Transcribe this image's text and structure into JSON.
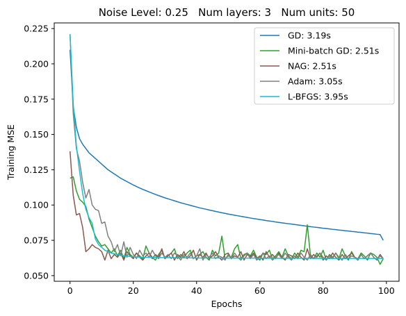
{
  "chart_data": {
    "type": "line",
    "title": "Noise Level: 0.25   Num layers: 3   Num units: 50",
    "xlabel": "Epochs",
    "ylabel": "Training MSE",
    "xlim": [
      -5,
      104
    ],
    "ylim": [
      0.046,
      0.229
    ],
    "xticks": [
      0,
      20,
      40,
      60,
      80,
      100
    ],
    "yticks": [
      0.05,
      0.075,
      0.1,
      0.125,
      0.15,
      0.175,
      0.2,
      0.225
    ],
    "ytick_labels": [
      "0.050",
      "0.075",
      "0.100",
      "0.125",
      "0.150",
      "0.175",
      "0.200",
      "0.225"
    ],
    "grid": false,
    "legend_position": "top-right",
    "series": [
      {
        "name": "GD: 3.19s",
        "color": "#1f77b4",
        "values": [
          0.21,
          0.17,
          0.155,
          0.147,
          0.143,
          0.14,
          0.137,
          0.135,
          0.133,
          0.131,
          0.129,
          0.127,
          0.125,
          0.1235,
          0.122,
          0.1205,
          0.119,
          0.1178,
          0.1166,
          0.1154,
          0.1142,
          0.1131,
          0.1121,
          0.1111,
          0.1102,
          0.1093,
          0.1084,
          0.1075,
          0.1067,
          0.1059,
          0.1051,
          0.1044,
          0.1037,
          0.103,
          0.1023,
          0.1016,
          0.101,
          0.1004,
          0.0998,
          0.0992,
          0.0986,
          0.098,
          0.0975,
          0.097,
          0.0965,
          0.096,
          0.0955,
          0.095,
          0.0945,
          0.0941,
          0.0936,
          0.0932,
          0.0928,
          0.0924,
          0.092,
          0.0916,
          0.0912,
          0.0908,
          0.0904,
          0.0901,
          0.0897,
          0.0894,
          0.089,
          0.0887,
          0.0884,
          0.088,
          0.0877,
          0.0874,
          0.0871,
          0.0868,
          0.0865,
          0.0862,
          0.0859,
          0.0856,
          0.0853,
          0.085,
          0.0847,
          0.0844,
          0.0842,
          0.0839,
          0.0836,
          0.0834,
          0.0831,
          0.0828,
          0.0826,
          0.0823,
          0.0821,
          0.0818,
          0.0816,
          0.0813,
          0.0811,
          0.0808,
          0.0806,
          0.0803,
          0.0801,
          0.0798,
          0.0796,
          0.0793,
          0.0791,
          0.075
        ]
      },
      {
        "name": "Mini-batch GD: 2.51s",
        "color": "#2ca02c",
        "values": [
          0.119,
          0.12,
          0.11,
          0.104,
          0.102,
          0.099,
          0.09,
          0.084,
          0.078,
          0.074,
          0.071,
          0.072,
          0.069,
          0.066,
          0.069,
          0.064,
          0.068,
          0.062,
          0.07,
          0.065,
          0.063,
          0.066,
          0.064,
          0.062,
          0.071,
          0.066,
          0.063,
          0.061,
          0.065,
          0.068,
          0.062,
          0.064,
          0.066,
          0.069,
          0.062,
          0.065,
          0.063,
          0.066,
          0.068,
          0.062,
          0.064,
          0.065,
          0.067,
          0.063,
          0.061,
          0.068,
          0.064,
          0.066,
          0.078,
          0.062,
          0.064,
          0.063,
          0.069,
          0.072,
          0.062,
          0.065,
          0.066,
          0.064,
          0.068,
          0.063,
          0.061,
          0.066,
          0.065,
          0.068,
          0.062,
          0.064,
          0.067,
          0.063,
          0.069,
          0.064,
          0.062,
          0.066,
          0.063,
          0.068,
          0.067,
          0.086,
          0.064,
          0.062,
          0.066,
          0.063,
          0.068,
          0.061,
          0.065,
          0.063,
          0.066,
          0.062,
          0.069,
          0.064,
          0.061,
          0.067,
          0.063,
          0.062,
          0.066,
          0.064,
          0.061,
          0.066,
          0.065,
          0.063,
          0.058,
          0.062
        ]
      },
      {
        "name": "NAG: 2.51s",
        "color": "#8c564b",
        "values": [
          0.138,
          0.107,
          0.093,
          0.094,
          0.084,
          0.067,
          0.069,
          0.072,
          0.07,
          0.069,
          0.067,
          0.061,
          0.068,
          0.062,
          0.065,
          0.063,
          0.066,
          0.061,
          0.067,
          0.064,
          0.062,
          0.066,
          0.063,
          0.061,
          0.064,
          0.066,
          0.062,
          0.065,
          0.063,
          0.069,
          0.062,
          0.064,
          0.066,
          0.061,
          0.065,
          0.063,
          0.067,
          0.062,
          0.064,
          0.068,
          0.061,
          0.065,
          0.063,
          0.066,
          0.062,
          0.064,
          0.067,
          0.063,
          0.061,
          0.065,
          0.066,
          0.062,
          0.064,
          0.063,
          0.067,
          0.061,
          0.065,
          0.063,
          0.066,
          0.062,
          0.064,
          0.061,
          0.067,
          0.063,
          0.065,
          0.062,
          0.066,
          0.063,
          0.061,
          0.065,
          0.064,
          0.062,
          0.066,
          0.063,
          0.061,
          0.069,
          0.062,
          0.065,
          0.063,
          0.066,
          0.061,
          0.064,
          0.062,
          0.066,
          0.063,
          0.061,
          0.065,
          0.062,
          0.064,
          0.066,
          0.063,
          0.061,
          0.065,
          0.062,
          0.064,
          0.066,
          0.063,
          0.061,
          0.065,
          0.062
        ]
      },
      {
        "name": "Adam: 3.05s",
        "color": "#7f7f7f",
        "values": [
          0.221,
          0.165,
          0.14,
          0.131,
          0.116,
          0.105,
          0.111,
          0.1,
          0.097,
          0.096,
          0.087,
          0.088,
          0.078,
          0.074,
          0.067,
          0.072,
          0.064,
          0.074,
          0.063,
          0.07,
          0.065,
          0.062,
          0.068,
          0.064,
          0.066,
          0.063,
          0.068,
          0.064,
          0.062,
          0.066,
          0.063,
          0.065,
          0.062,
          0.066,
          0.064,
          0.061,
          0.065,
          0.063,
          0.066,
          0.062,
          0.064,
          0.069,
          0.061,
          0.065,
          0.063,
          0.066,
          0.062,
          0.064,
          0.063,
          0.061,
          0.065,
          0.062,
          0.066,
          0.063,
          0.061,
          0.064,
          0.066,
          0.062,
          0.065,
          0.061,
          0.063,
          0.066,
          0.062,
          0.064,
          0.061,
          0.063,
          0.065,
          0.062,
          0.066,
          0.063,
          0.061,
          0.064,
          0.062,
          0.066,
          0.063,
          0.061,
          0.065,
          0.062,
          0.064,
          0.066,
          0.063,
          0.061,
          0.064,
          0.062,
          0.066,
          0.063,
          0.061,
          0.065,
          0.062,
          0.064,
          0.063,
          0.061,
          0.065,
          0.062,
          0.064,
          0.066,
          0.063,
          0.061,
          0.064,
          0.062
        ]
      },
      {
        "name": "L-BFGS: 3.95s",
        "color": "#17becf",
        "values": [
          0.221,
          0.172,
          0.142,
          0.124,
          0.108,
          0.097,
          0.091,
          0.087,
          0.076,
          0.072,
          0.07,
          0.068,
          0.067,
          0.066,
          0.0655,
          0.065,
          0.0645,
          0.064,
          0.0638,
          0.0636,
          0.0634,
          0.0632,
          0.0631,
          0.063,
          0.063,
          0.0629,
          0.0629,
          0.0628,
          0.0628,
          0.0628,
          0.0627,
          0.0627,
          0.0627,
          0.0627,
          0.0626,
          0.0626,
          0.0626,
          0.0626,
          0.0626,
          0.0626,
          0.0625,
          0.0625,
          0.0625,
          0.0625,
          0.0625,
          0.0625,
          0.0625,
          0.0625,
          0.0625,
          0.0624,
          0.0624,
          0.0624,
          0.0624,
          0.0624,
          0.0624,
          0.0624,
          0.0624,
          0.0624,
          0.0624,
          0.0624,
          0.0623,
          0.0623,
          0.0623,
          0.0623,
          0.0623,
          0.0623,
          0.0623,
          0.0623,
          0.0623,
          0.0623,
          0.0623,
          0.0623,
          0.0623,
          0.0623,
          0.0623,
          0.0623,
          0.0623,
          0.0622,
          0.0622,
          0.0622,
          0.0622,
          0.0622,
          0.0622,
          0.0622,
          0.0622,
          0.0622,
          0.0622,
          0.0622,
          0.0622,
          0.0622,
          0.0622,
          0.0622,
          0.0622,
          0.0622,
          0.0622,
          0.0622,
          0.0622,
          0.0622,
          0.0622,
          0.0622
        ]
      }
    ]
  }
}
